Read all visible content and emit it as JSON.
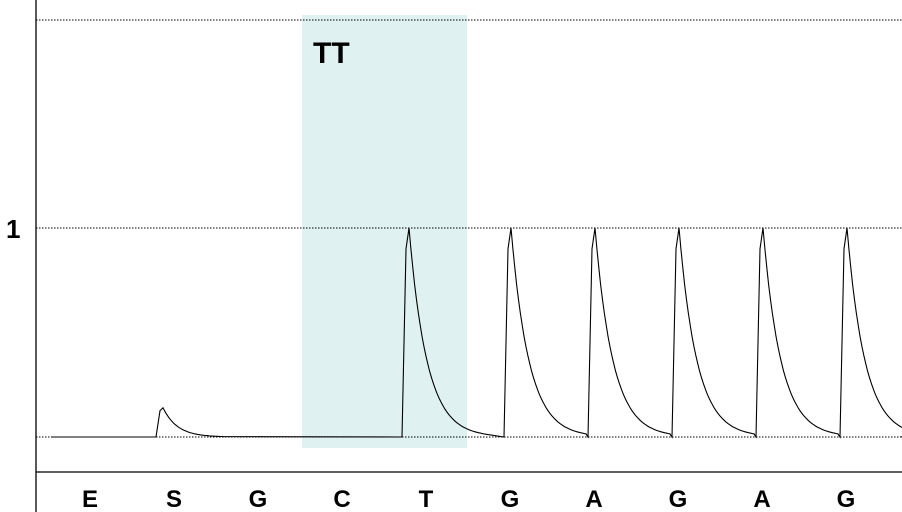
{
  "chart_data": {
    "type": "line",
    "title": "",
    "xlabel": "",
    "ylabel": "",
    "categories": [
      "E",
      "S",
      "G",
      "C",
      "T",
      "G",
      "A",
      "G",
      "A",
      "G"
    ],
    "y_ticks": [
      {
        "value": 1,
        "label": "1"
      }
    ],
    "ylim": [
      -0.1,
      1.1
    ],
    "gridlines": [
      0,
      1,
      1.0
    ],
    "highlight": {
      "label": "TT",
      "from_index": 3,
      "to_index": 4,
      "color": "#e0f1f1"
    },
    "series": [
      {
        "values": [
          0.0,
          0.14,
          0.0,
          0.0,
          1.0,
          1.0,
          1.0,
          1.0,
          1.0,
          1.0
        ]
      }
    ],
    "colors": {
      "line": "#000000",
      "grid": "#000000",
      "axis": "#000000"
    }
  }
}
